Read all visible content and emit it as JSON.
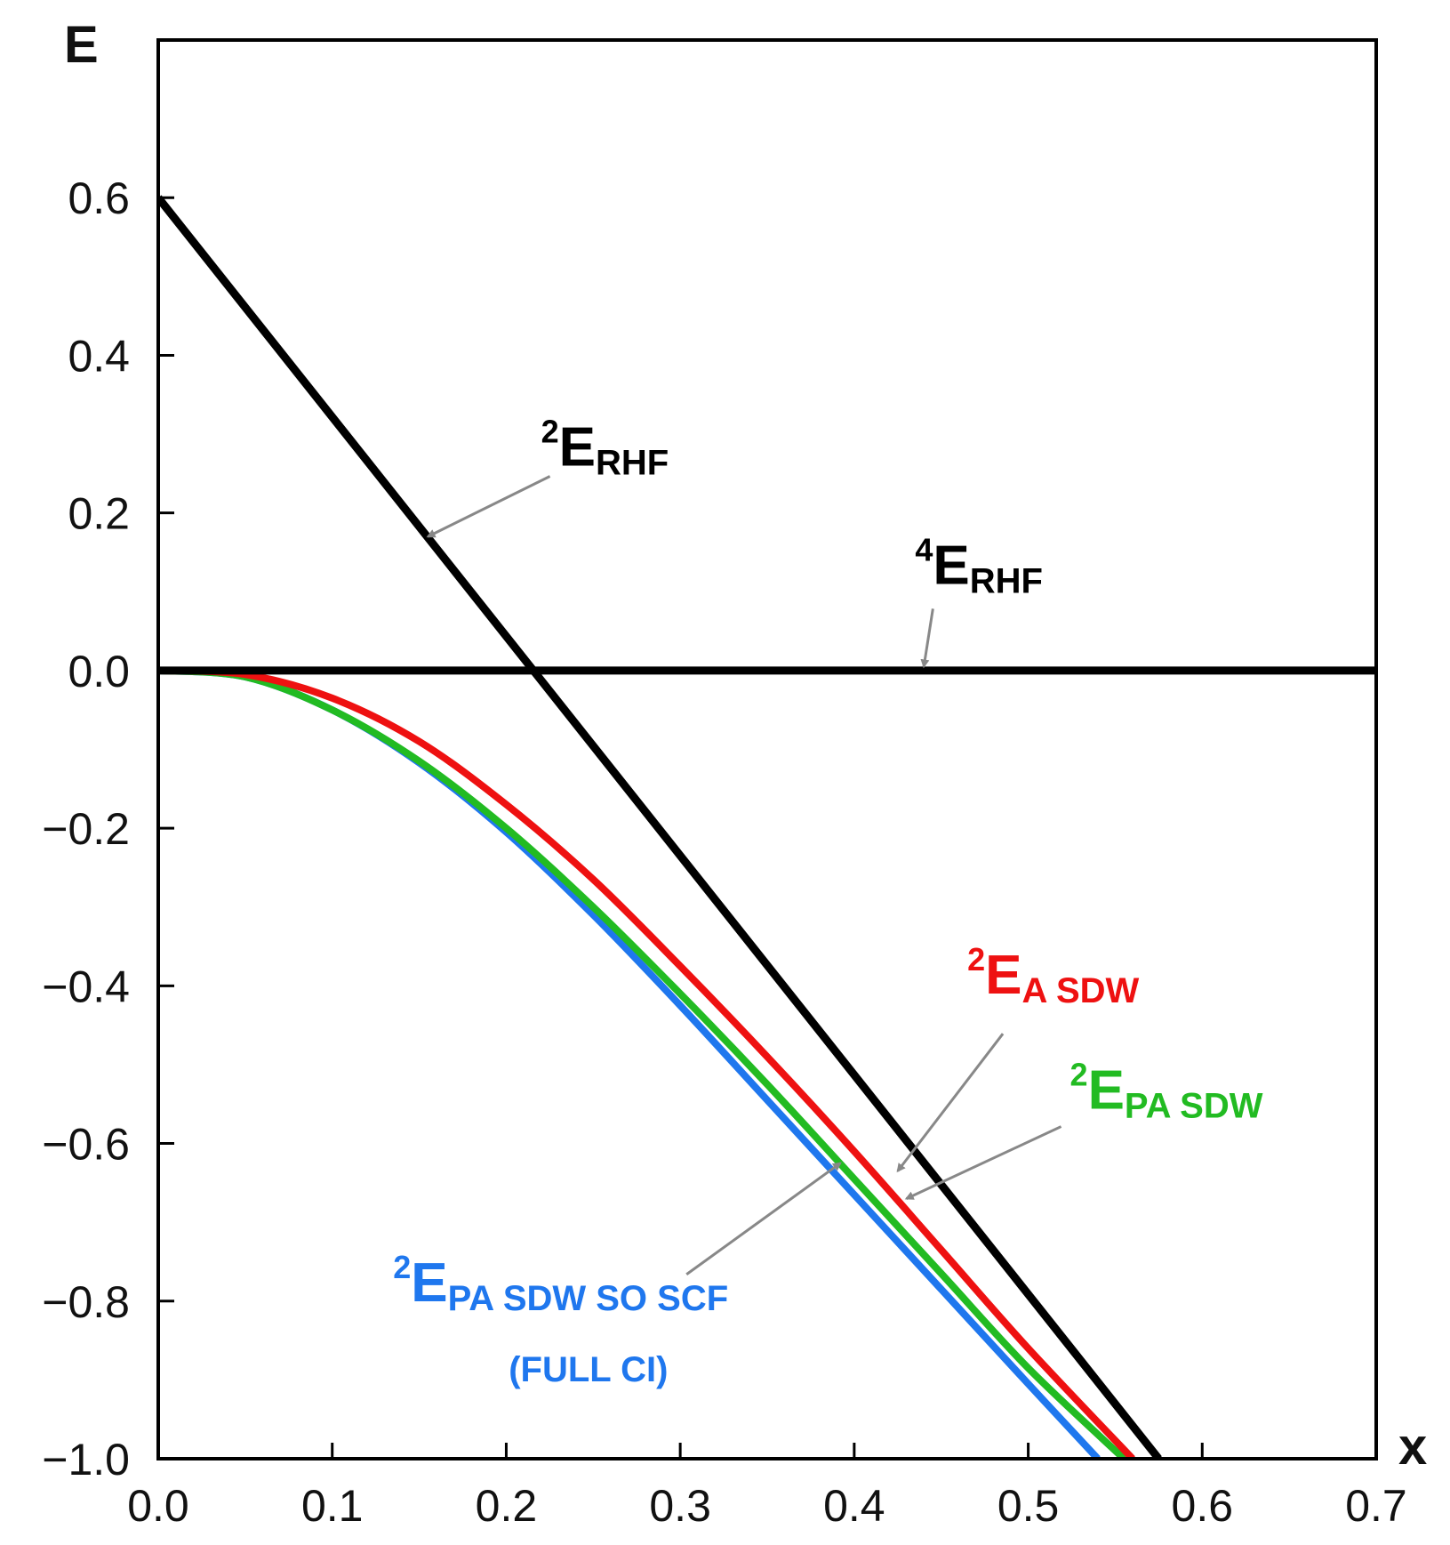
{
  "chart_data": {
    "type": "line",
    "title": "",
    "xlabel": "x",
    "ylabel": "E",
    "xlim": [
      0.0,
      0.7
    ],
    "ylim": [
      -1.0,
      0.8
    ],
    "grid": false,
    "x_ticks": [
      0.0,
      0.1,
      0.2,
      0.3,
      0.4,
      0.5,
      0.6,
      0.7
    ],
    "x_tick_labels": [
      "0.0",
      "0.1",
      "0.2",
      "0.3",
      "0.4",
      "0.5",
      "0.6",
      "0.7"
    ],
    "y_ticks": [
      0.6,
      0.4,
      0.2,
      0.0,
      -0.2,
      -0.4,
      -0.6,
      -0.8,
      -1.0
    ],
    "y_tick_labels": [
      "0.6",
      "0.4",
      "0.2",
      "0.0",
      "−0.2",
      "−0.4",
      "−0.6",
      "−0.8",
      "−1.0"
    ],
    "series": [
      {
        "name": "2E_RHF",
        "color": "#000000",
        "x": [
          0.0,
          0.575
        ],
        "y": [
          0.6,
          -1.0
        ],
        "annotation": {
          "sup": "2",
          "main": "E",
          "sub": "RHF",
          "data_x": 0.22,
          "data_y": 0.26,
          "arrow_to": [
            0.155,
            0.17
          ]
        }
      },
      {
        "name": "4E_RHF",
        "color": "#000000",
        "x": [
          0.0,
          0.7
        ],
        "y": [
          0.0,
          0.0
        ],
        "annotation": {
          "sup": "4",
          "main": "E",
          "sub": "RHF",
          "data_x": 0.435,
          "data_y": 0.11,
          "arrow_to": [
            0.44,
            0.005
          ]
        }
      },
      {
        "name": "2E_A SDW",
        "color": "#ee1111",
        "x": [
          0.0,
          0.05,
          0.1,
          0.15,
          0.2,
          0.25,
          0.3,
          0.35,
          0.4,
          0.45,
          0.5,
          0.56
        ],
        "y": [
          0.0,
          -0.005,
          -0.035,
          -0.09,
          -0.17,
          -0.265,
          -0.375,
          -0.49,
          -0.61,
          -0.735,
          -0.86,
          -1.0
        ],
        "annotation": {
          "sup": "2",
          "main": "E",
          "sub": "A SDW",
          "data_x": 0.465,
          "data_y": -0.41,
          "arrow_to": [
            0.425,
            -0.635
          ]
        }
      },
      {
        "name": "2E_PA SDW",
        "color": "#22bb22",
        "x": [
          0.0,
          0.05,
          0.1,
          0.15,
          0.2,
          0.25,
          0.3,
          0.35,
          0.4,
          0.45,
          0.5,
          0.555
        ],
        "y": [
          0.0,
          -0.008,
          -0.05,
          -0.115,
          -0.2,
          -0.3,
          -0.41,
          -0.525,
          -0.645,
          -0.765,
          -0.885,
          -1.0
        ],
        "annotation": {
          "sup": "2",
          "main": "E",
          "sub": "PA SDW",
          "data_x": 0.524,
          "data_y": -0.556,
          "arrow_to": [
            0.43,
            -0.67
          ]
        }
      },
      {
        "name": "2E_PA SDW SO SCF (FULL CI)",
        "color": "#1f77ee",
        "x": [
          0.0,
          0.05,
          0.1,
          0.15,
          0.2,
          0.25,
          0.3,
          0.35,
          0.4,
          0.45,
          0.5,
          0.54
        ],
        "y": [
          0.0,
          -0.008,
          -0.05,
          -0.117,
          -0.205,
          -0.31,
          -0.425,
          -0.545,
          -0.665,
          -0.785,
          -0.905,
          -1.0
        ],
        "annotation": {
          "sup": "2",
          "main": "E",
          "sub": "PA SDW  SO  SCF",
          "line2": "(FULL CI)",
          "data_x": 0.135,
          "data_y": -0.8,
          "arrow_to": [
            0.392,
            -0.625
          ]
        }
      }
    ]
  }
}
